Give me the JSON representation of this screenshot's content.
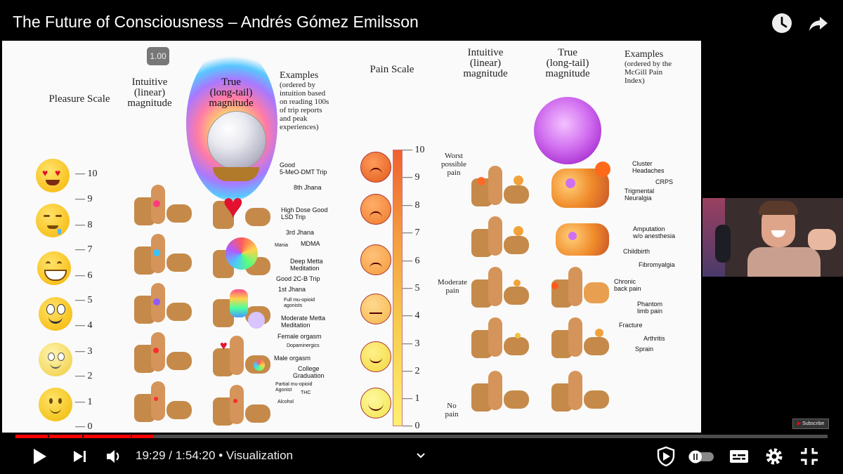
{
  "video": {
    "title": "The Future of Consciousness – Andrés Gómez Emilsson"
  },
  "playback": {
    "speed_badge": "1.00",
    "current_time": "19:29",
    "separator": " / ",
    "duration": "1:54:20",
    "chapter": "• Visualization",
    "progress_fraction": 0.1704,
    "subscribe_label": "Subscribe"
  },
  "slide": {
    "pleasure_scale": {
      "heading": "Pleasure Scale",
      "ticks": [
        "10",
        "9",
        "8",
        "7",
        "6",
        "5",
        "4",
        "3",
        "2",
        "1",
        "0"
      ],
      "col_intuitive": [
        "Intuitive",
        "(linear)",
        "magnitude"
      ],
      "col_true": [
        "True",
        "(long-tail)",
        "magnitude"
      ],
      "col_examples": [
        "Examples",
        "(ordered by",
        "intuition based",
        "on reading 100s",
        "of trip reports",
        "and peak",
        "experiences)"
      ],
      "examples": {
        "e1": "Good",
        "e1b": "5-MeO-DMT Trip",
        "e2": "8th Jhana",
        "e3": "High Dose Good",
        "e3b": "LSD Trip",
        "e4": "3rd Jhana",
        "e5a": "Mania",
        "e5b": "MDMA",
        "e6": "Deep Metta",
        "e6b": "Meditation",
        "e7": "Good 2C-B Trip",
        "e8": "1st Jhana",
        "e9": "Full mu-opioid",
        "e9b": "agonists",
        "e10": "Moderate Metta",
        "e10b": "Meditation",
        "e11": "Female orgasm",
        "e12": "Dopaminergics",
        "e13": "Male orgasm",
        "e14": "College",
        "e14b": "Graduation",
        "e15": "Partial mu-opioid",
        "e15b": "Agonist",
        "e15c": "THC",
        "e16": "Alcohol"
      }
    },
    "pain_scale": {
      "heading": "Pain Scale",
      "ticks": [
        "10",
        "9",
        "8",
        "7",
        "6",
        "5",
        "4",
        "3",
        "2",
        "1",
        "0"
      ],
      "label_worst": [
        "Worst",
        "possible",
        "pain"
      ],
      "label_moderate": [
        "Moderate",
        "pain"
      ],
      "label_no": [
        "No",
        "pain"
      ],
      "col_intuitive": [
        "Intuitive",
        "(linear)",
        "magnitude"
      ],
      "col_true": [
        "True",
        "(long-tail)",
        "magnitude"
      ],
      "col_examples": [
        "Examples",
        "(ordered by the",
        "McGill Pain",
        "Index)"
      ],
      "examples": {
        "p1": "Cluster",
        "p1b": "Headaches",
        "p2": "CRPS",
        "p3": "Trigmental",
        "p3b": "Neuralgia",
        "p4": "Amputation",
        "p4b": "w/o anesthesia",
        "p5": "Childbirth",
        "p6": "Fibromyalgia",
        "p7": "Chronic",
        "p7b": "back pain",
        "p8": "Phantom",
        "p8b": "limb pain",
        "p9": "Fracture",
        "p10": "Arthritis",
        "p11": "Sprain"
      }
    }
  },
  "colors": {
    "progress": "#ff0000",
    "background": "#000000",
    "slide_bg": "#fafafa"
  },
  "icons": {
    "watch_later": "clock-icon",
    "share": "share-icon",
    "play": "play-icon",
    "next": "next-icon",
    "volume": "volume-icon",
    "chevron": "chevron-down-icon",
    "sponsor": "shield-icon",
    "autoplay": "autoplay-toggle-icon",
    "captions": "captions-icon",
    "settings": "gear-icon",
    "fullscreen": "exit-fullscreen-icon"
  }
}
